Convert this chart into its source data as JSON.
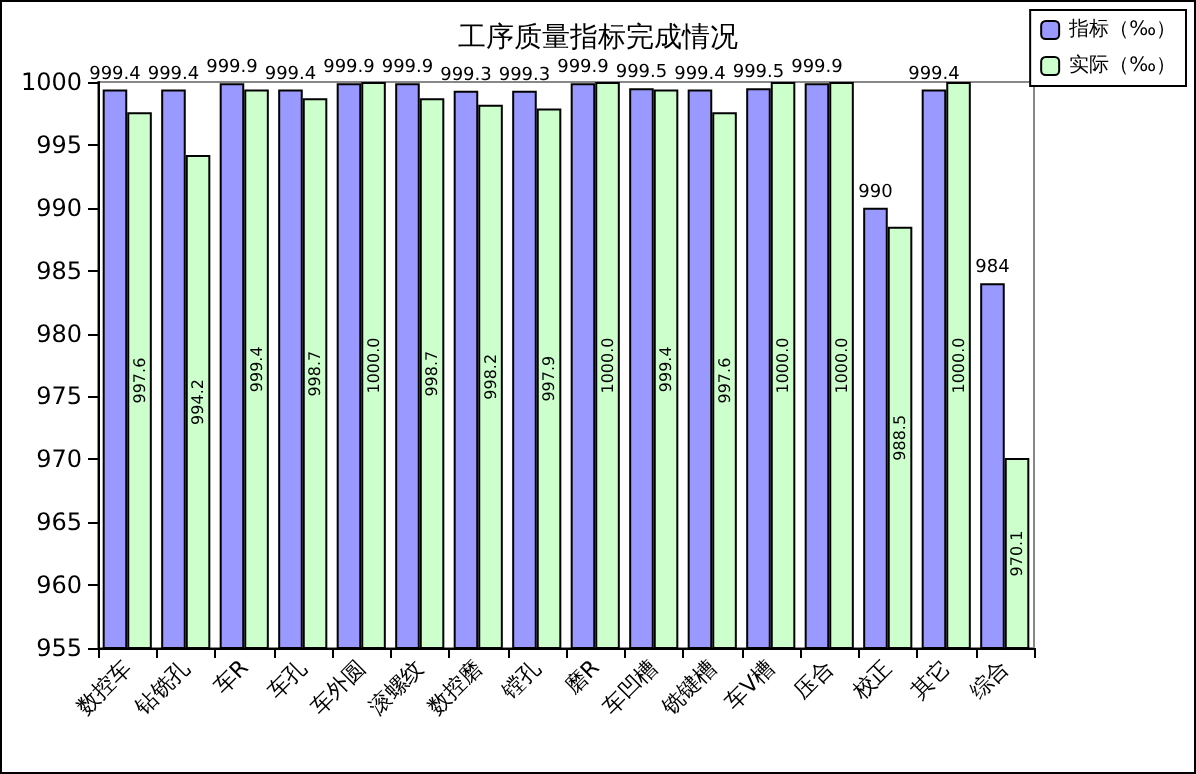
{
  "chart_data": {
    "type": "bar",
    "title": "工序质量指标完成情况",
    "categories": [
      "数控车",
      "钻铣孔",
      "车R",
      "车孔",
      "车外圆",
      "滚螺纹",
      "数控磨",
      "镗孔",
      "磨R",
      "车凹槽",
      "铣键槽",
      "车V槽",
      "压合",
      "校正",
      "其它",
      "综合"
    ],
    "series": [
      {
        "name": "指标（‰）",
        "color": "#9999ff",
        "values": [
          999.4,
          999.4,
          999.9,
          999.4,
          999.9,
          999.9,
          999.3,
          999.3,
          999.9,
          999.5,
          999.4,
          999.5,
          999.9,
          990,
          999.4,
          984
        ],
        "value_labels": [
          "999.4",
          "999.4",
          "999.9",
          "999.4",
          "999.9",
          "999.9",
          "999.3",
          "999.3",
          "999.9",
          "999.5",
          "999.4",
          "999.5",
          "999.9",
          "990",
          "999.4",
          "984"
        ]
      },
      {
        "name": "实际（‰）",
        "color": "#ccffcc",
        "values": [
          997.6,
          994.2,
          999.4,
          998.7,
          1000.0,
          998.7,
          998.2,
          997.9,
          1000.0,
          999.4,
          997.6,
          1000.0,
          1000.0,
          988.5,
          1000.0,
          970.1
        ],
        "value_labels": [
          "997.6",
          "994.2",
          "999.4",
          "998.7",
          "1000.0",
          "998.7",
          "998.2",
          "997.9",
          "1000.0",
          "999.4",
          "997.6",
          "1000.0",
          "1000.0",
          "988.5",
          "1000.0",
          "970.1"
        ]
      }
    ],
    "ylim": [
      955,
      1000
    ],
    "yticks": [
      955,
      960,
      965,
      970,
      975,
      980,
      985,
      990,
      995,
      1000
    ],
    "grid": false,
    "legend": "top right"
  }
}
